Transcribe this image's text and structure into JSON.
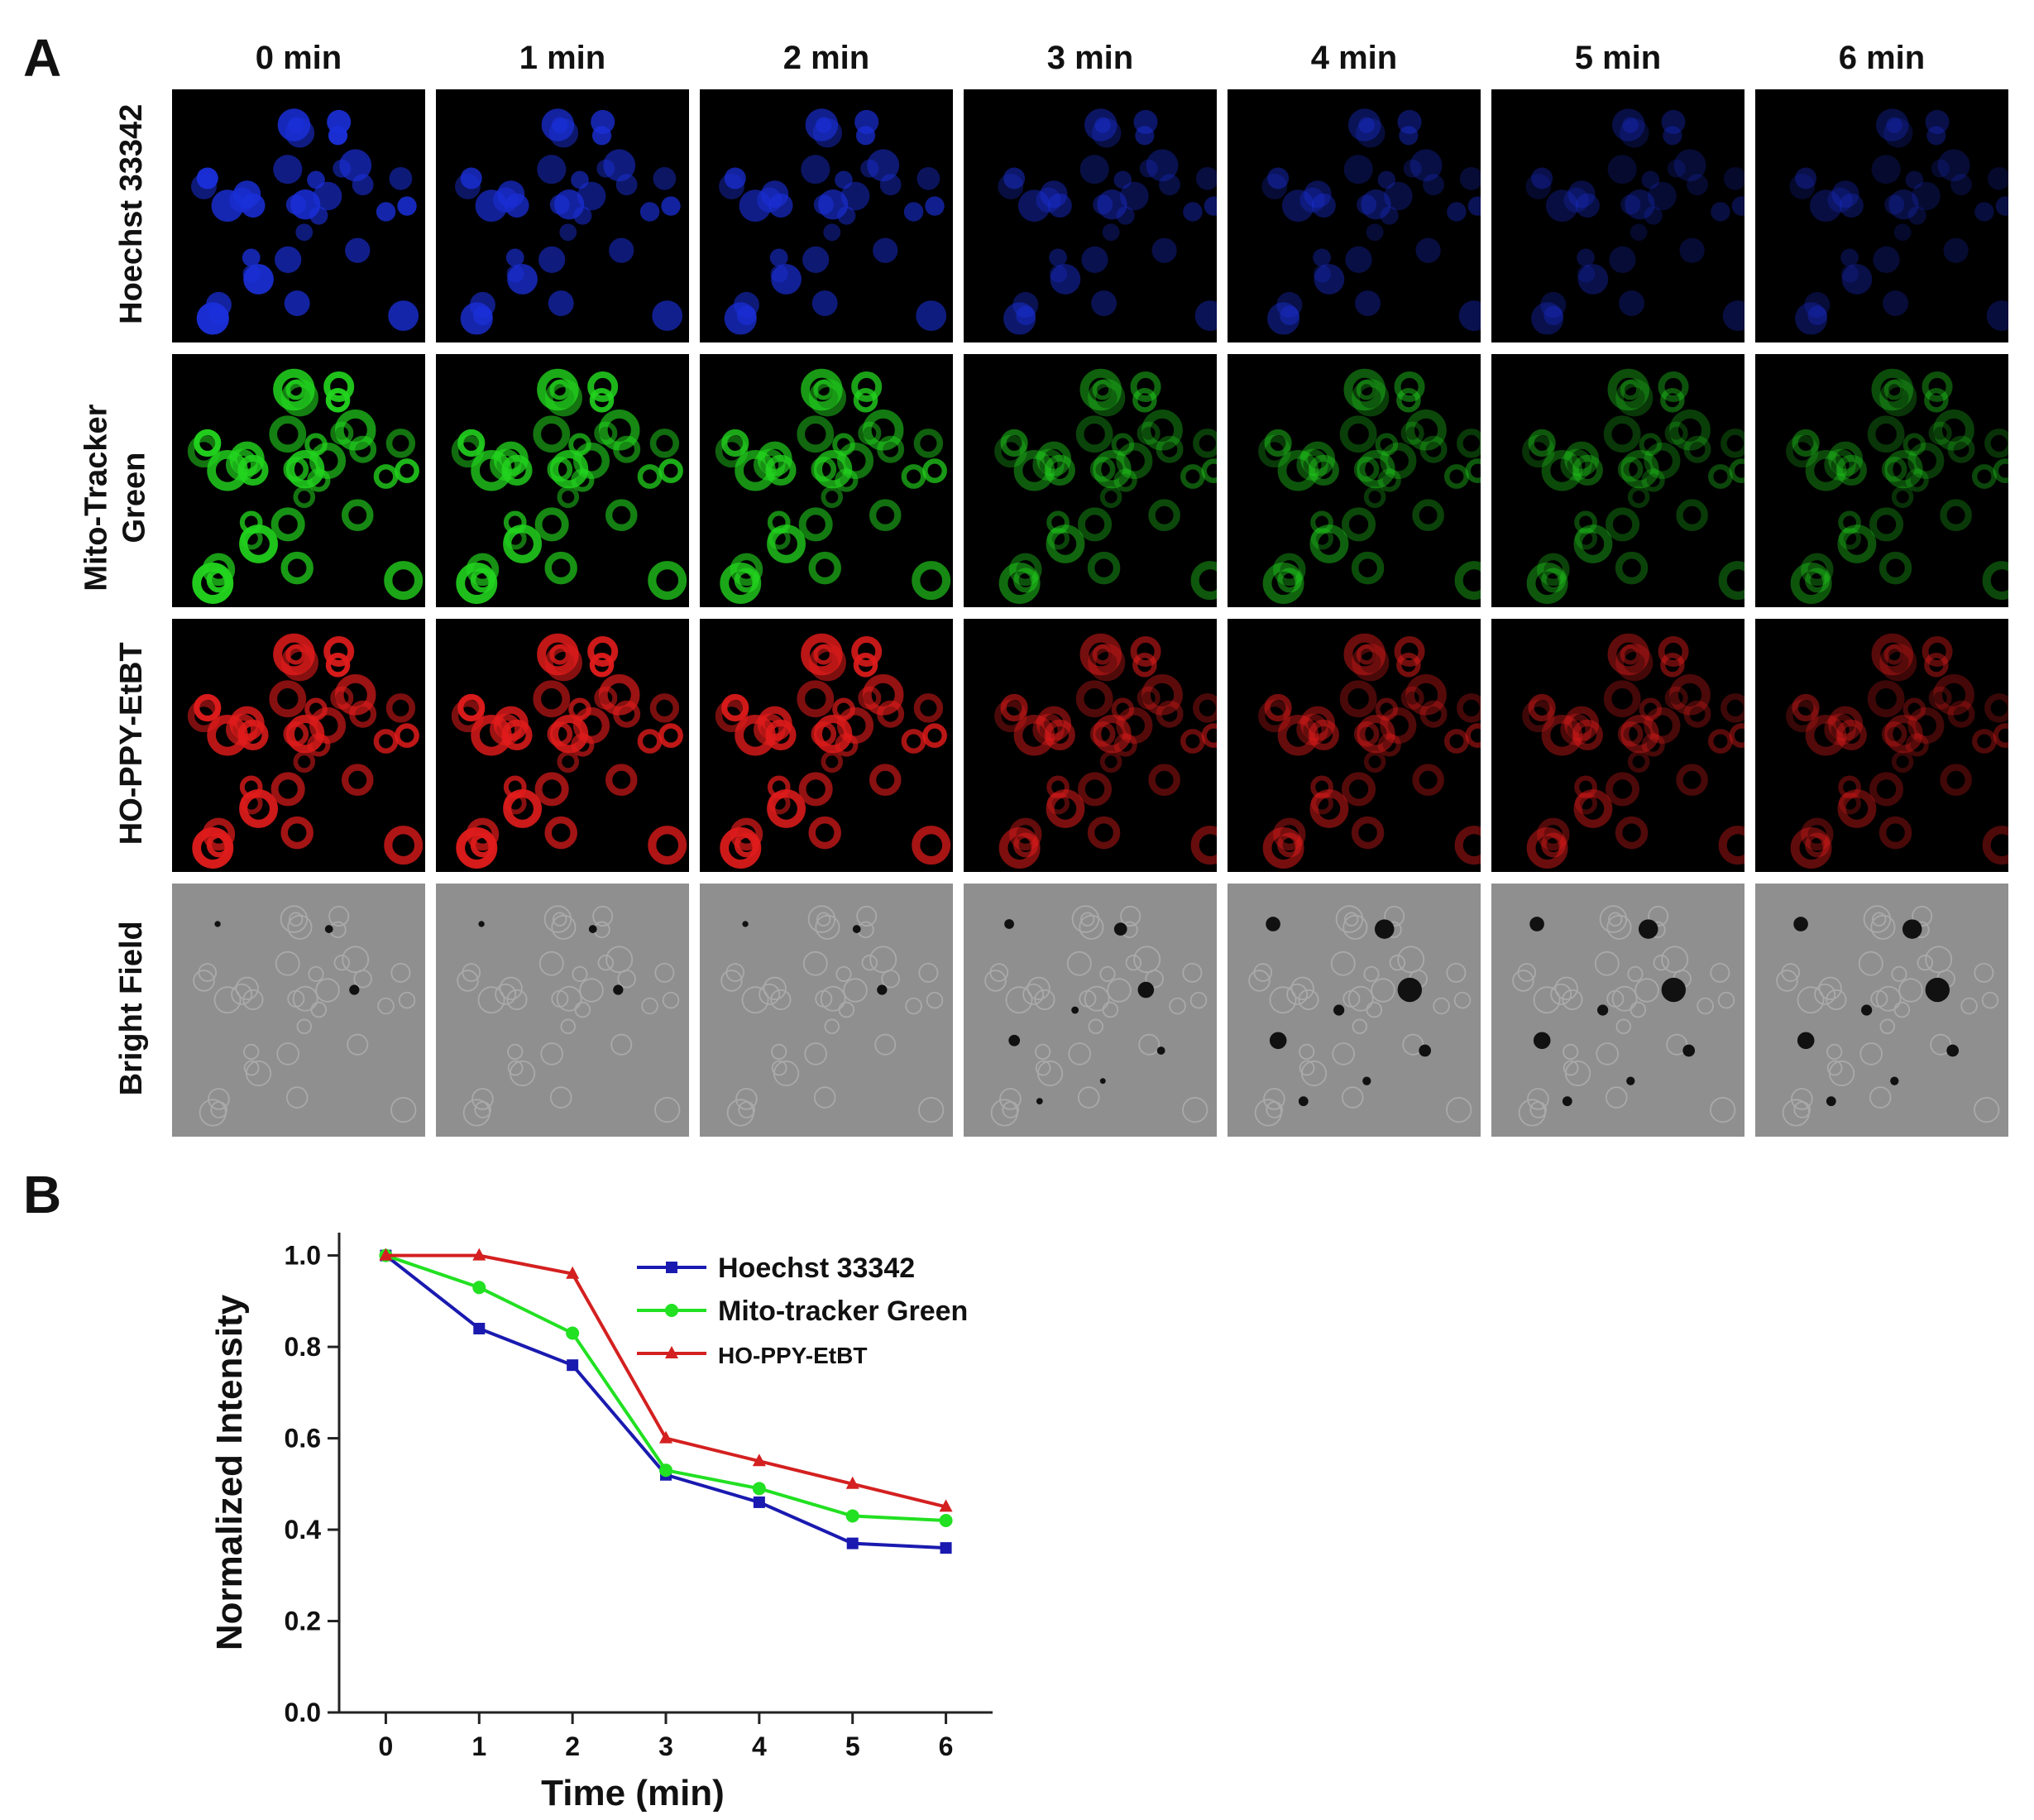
{
  "panel_a": {
    "letter": "A",
    "time_labels": [
      "0 min",
      "1 min",
      "2 min",
      "3 min",
      "4 min",
      "5 min",
      "6 min"
    ],
    "rows": [
      {
        "label": "Hoechst 33342",
        "kind": "fluorescence",
        "color": "#1a2fd8",
        "intensity": [
          1.0,
          0.84,
          0.76,
          0.52,
          0.46,
          0.37,
          0.36
        ]
      },
      {
        "label": "Mito-Tracker\nGreen",
        "kind": "fluorescence",
        "color": "#22d41e",
        "intensity": [
          1.0,
          0.93,
          0.83,
          0.53,
          0.49,
          0.43,
          0.42
        ]
      },
      {
        "label": "HO-PPY-EtBT",
        "kind": "fluorescence",
        "color": "#e01b1b",
        "intensity": [
          1.0,
          1.0,
          0.96,
          0.6,
          0.55,
          0.5,
          0.45
        ]
      },
      {
        "label": "Bright Field",
        "kind": "brightfield",
        "color": "#8f8f8f"
      }
    ]
  },
  "panel_b": {
    "letter": "B"
  },
  "chart_data": {
    "type": "line",
    "x": [
      0,
      1,
      2,
      3,
      4,
      5,
      6
    ],
    "xlabel": "Time (min)",
    "ylabel": "Normalized Intensity",
    "xlim": [
      -0.5,
      6.5
    ],
    "ylim": [
      0,
      1.05
    ],
    "xticks": [
      0,
      1,
      2,
      3,
      4,
      5,
      6
    ],
    "yticks": [
      "0.0",
      "0.2",
      "0.4",
      "0.6",
      "0.8",
      "1.0"
    ],
    "legend_position": "top-right",
    "grid": false,
    "series": [
      {
        "name": "Hoechst 33342",
        "color": "#1a1ab0",
        "marker": "square",
        "values": [
          1.0,
          0.84,
          0.76,
          0.52,
          0.46,
          0.37,
          0.36
        ]
      },
      {
        "name": "Mito-tracker Green",
        "color": "#22e022",
        "marker": "circle",
        "values": [
          1.0,
          0.93,
          0.83,
          0.53,
          0.49,
          0.43,
          0.42
        ]
      },
      {
        "name": "HO-PPY-EtBT",
        "color": "#d42020",
        "marker": "triangle",
        "values": [
          1.0,
          1.0,
          0.96,
          0.6,
          0.55,
          0.5,
          0.45
        ]
      }
    ]
  }
}
